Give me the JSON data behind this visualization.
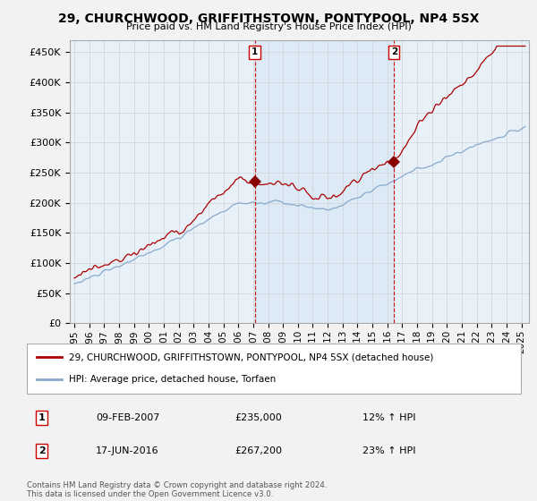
{
  "title": "29, CHURCHWOOD, GRIFFITHSTOWN, PONTYPOOL, NP4 5SX",
  "subtitle": "Price paid vs. HM Land Registry's House Price Index (HPI)",
  "ylim": [
    0,
    470000
  ],
  "yticks": [
    0,
    50000,
    100000,
    150000,
    200000,
    250000,
    300000,
    350000,
    400000,
    450000
  ],
  "legend_line1": "29, CHURCHWOOD, GRIFFITHSTOWN, PONTYPOOL, NP4 5SX (detached house)",
  "legend_line2": "HPI: Average price, detached house, Torfaen",
  "marker1_date": "09-FEB-2007",
  "marker1_price": "£235,000",
  "marker1_hpi": "12% ↑ HPI",
  "marker1_year": 2007.1,
  "marker1_value": 235000,
  "marker2_date": "17-JUN-2016",
  "marker2_price": "£267,200",
  "marker2_hpi": "23% ↑ HPI",
  "marker2_year": 2016.45,
  "marker2_value": 267200,
  "footnote": "Contains HM Land Registry data © Crown copyright and database right 2024.\nThis data is licensed under the Open Government Licence v3.0.",
  "line_color_red": "#aa0000",
  "line_color_blue": "#88aacc",
  "fill_color": "#ddeeff",
  "bg_color": "#e8f0f8",
  "marker_box_color": "#cc0000",
  "grid_color": "#cccccc",
  "fig_bg": "#f2f2f2"
}
